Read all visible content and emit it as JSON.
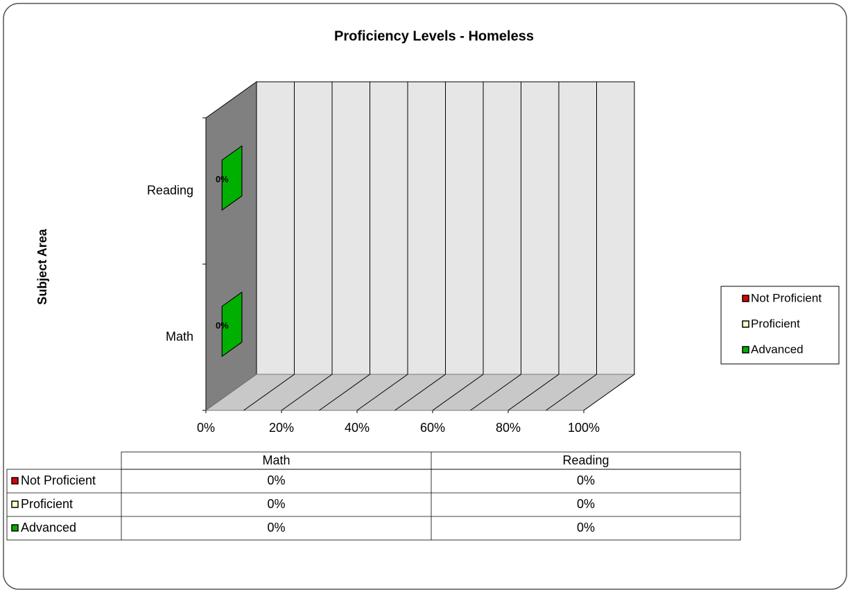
{
  "chart_data": {
    "type": "bar3d_stacked_horizontal",
    "title": "Proficiency Levels - Homeless",
    "y_label": "Subject Area",
    "categories": [
      "Math",
      "Reading"
    ],
    "series": [
      {
        "name": "Not Proficient",
        "color": "#e00000",
        "values": [
          0,
          0
        ],
        "value_labels": [
          "0%",
          "0%"
        ]
      },
      {
        "name": "Proficient",
        "color": "#ffffcc",
        "values": [
          0,
          0
        ],
        "value_labels": [
          "0%",
          "0%"
        ]
      },
      {
        "name": "Advanced",
        "color": "#00b000",
        "values": [
          0,
          0
        ],
        "value_labels": [
          "0%",
          "0%"
        ],
        "show_labels": true
      }
    ],
    "xlim": [
      0,
      100
    ],
    "xticks": [
      {
        "value": 0,
        "label": "0%"
      },
      {
        "value": 20,
        "label": "20%"
      },
      {
        "value": 40,
        "label": "40%"
      },
      {
        "value": 60,
        "label": "60%"
      },
      {
        "value": 80,
        "label": "80%"
      },
      {
        "value": 100,
        "label": "100%"
      }
    ],
    "x_gridlines": [
      10,
      20,
      30,
      40,
      50,
      60,
      70,
      80,
      90,
      100
    ],
    "legend": "right",
    "data_table": true
  }
}
